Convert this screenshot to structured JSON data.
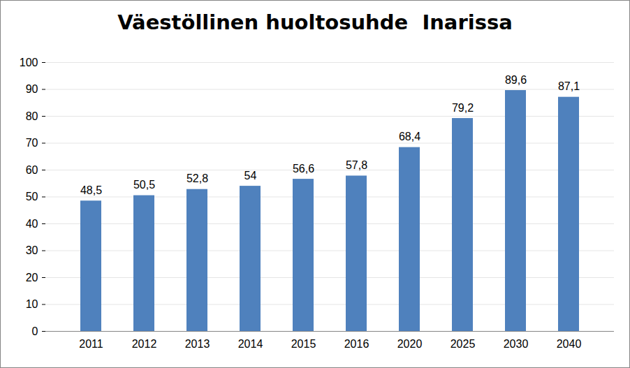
{
  "chart_data": {
    "type": "bar",
    "title": "Väestöllinen huoltosuhde  Inarissa",
    "categories": [
      "2011",
      "2012",
      "2013",
      "2014",
      "2015",
      "2016",
      "2020",
      "2025",
      "2030",
      "2040"
    ],
    "values": [
      48.5,
      50.5,
      52.8,
      54,
      56.6,
      57.8,
      68.4,
      79.2,
      89.6,
      87.1
    ],
    "value_labels": [
      "48,5",
      "50,5",
      "52,8",
      "54",
      "56,6",
      "57,8",
      "68,4",
      "79,2",
      "89,6",
      "87,1"
    ],
    "color": "#4f81bd",
    "ylim": [
      0,
      100
    ],
    "yticks": [
      0,
      10,
      20,
      30,
      40,
      50,
      60,
      70,
      80,
      90,
      100
    ],
    "grid": true,
    "data_labels": true
  }
}
